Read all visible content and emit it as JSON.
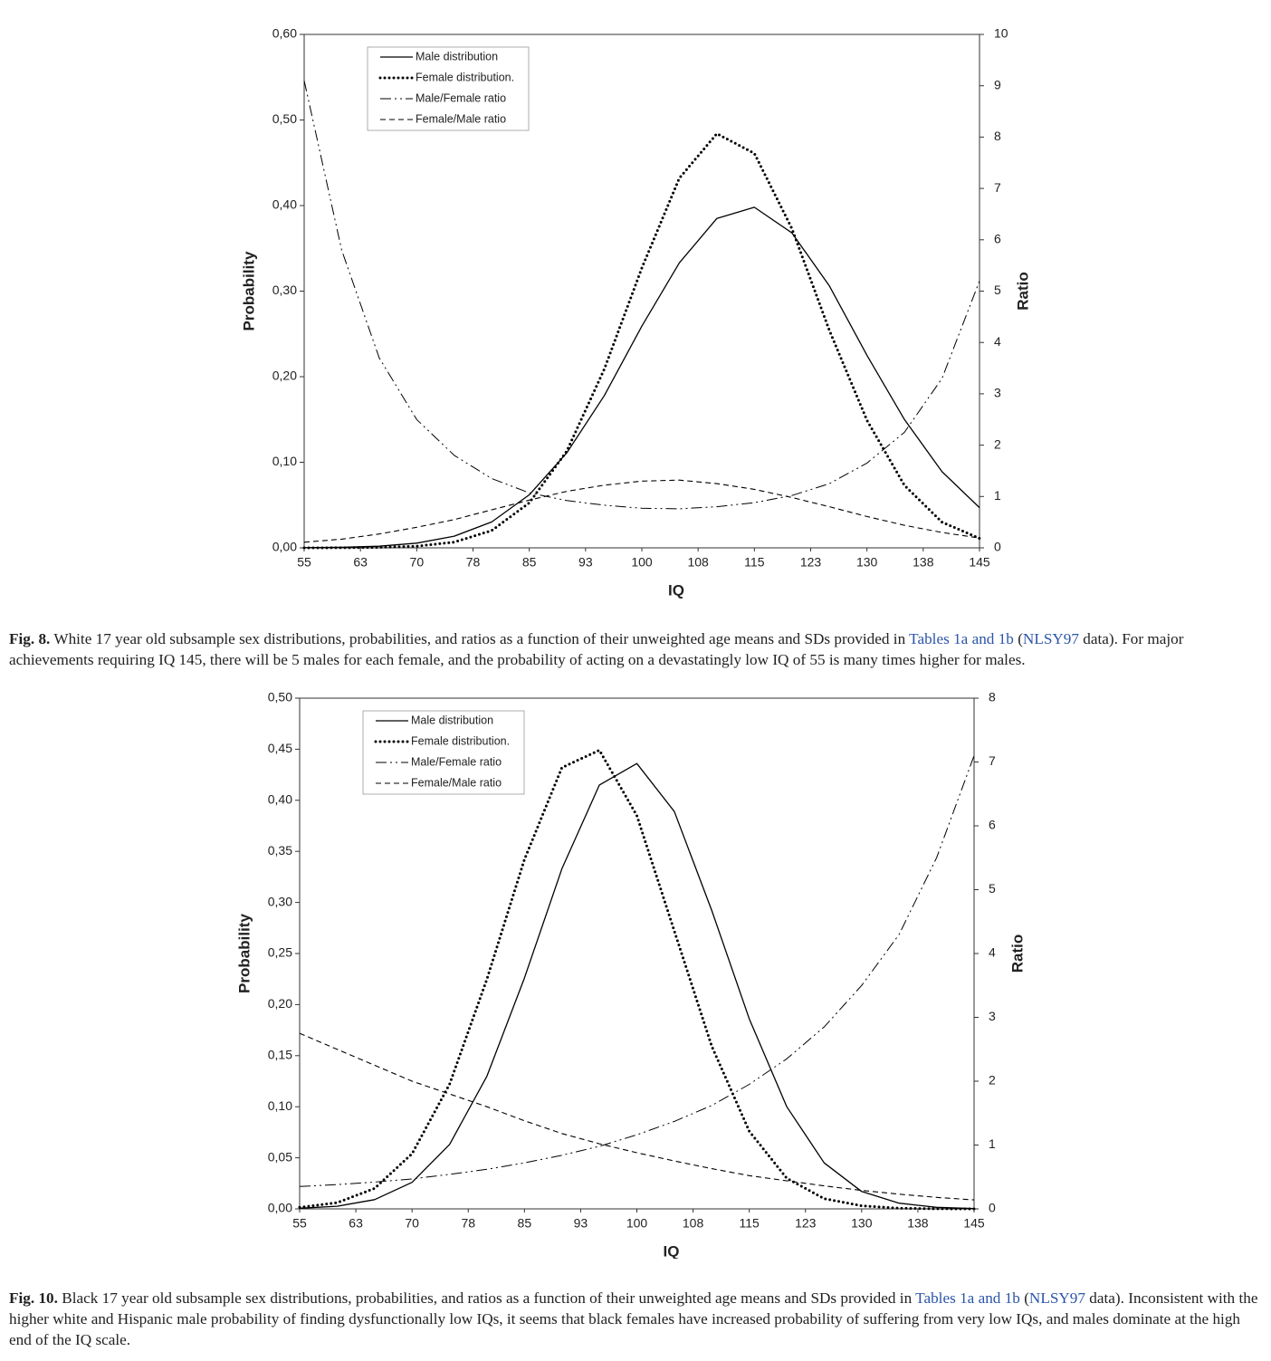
{
  "chart_data": [
    {
      "type": "line",
      "x_label": "IQ",
      "y_label": "Probability",
      "y2_label": "Ratio",
      "x": [
        55,
        60,
        65,
        70,
        75,
        80,
        85,
        90,
        95,
        100,
        105,
        110,
        115,
        120,
        125,
        130,
        135,
        140,
        145
      ],
      "xlim": [
        55,
        145
      ],
      "xticks": [
        55,
        {
          "value": 62.5,
          "label": "63"
        },
        70,
        {
          "value": 77.5,
          "label": "78"
        },
        85,
        {
          "value": 92.5,
          "label": "93"
        },
        100,
        {
          "value": 107.5,
          "label": "108"
        },
        115,
        {
          "value": 122.5,
          "label": "123"
        },
        130,
        {
          "value": 137.5,
          "label": "138"
        },
        145
      ],
      "ylim": [
        0,
        0.6
      ],
      "yticks": [
        {
          "value": 0,
          "label": "0,00"
        },
        {
          "value": 0.1,
          "label": "0,10"
        },
        {
          "value": 0.2,
          "label": "0,20"
        },
        {
          "value": 0.3,
          "label": "0,30"
        },
        {
          "value": 0.4,
          "label": "0,40"
        },
        {
          "value": 0.5,
          "label": "0,50"
        },
        {
          "value": 0.6,
          "label": "0,60"
        }
      ],
      "y2lim": [
        0,
        10
      ],
      "y2ticks": [
        0,
        1,
        2,
        3,
        4,
        5,
        6,
        7,
        8,
        9,
        10
      ],
      "legend": "upper left",
      "series": [
        {
          "name": "Male distribution",
          "color": "#000000",
          "dash": "solid",
          "values": [
            0.0002,
            0.0006,
            0.0019,
            0.0055,
            0.0136,
            0.0303,
            0.062,
            0.111,
            0.178,
            0.259,
            0.333,
            0.385,
            0.398,
            0.368,
            0.306,
            0.225,
            0.15,
            0.089,
            0.047
          ]
        },
        {
          "name": "Female distribution.",
          "color": "#000000",
          "dash": "dotted",
          "values": [
            0.0,
            0.0001,
            0.0005,
            0.0019,
            0.0067,
            0.0202,
            0.0526,
            0.113,
            0.209,
            0.327,
            0.432,
            0.484,
            0.461,
            0.373,
            0.254,
            0.149,
            0.073,
            0.03,
            0.011
          ]
        },
        {
          "name": "Male/Female ratio",
          "color": "#000000",
          "dash": "dashdotdot",
          "axis": "y2",
          "values": [
            9.1,
            5.8,
            3.7,
            2.5,
            1.8,
            1.35,
            1.07,
            0.92,
            0.83,
            0.77,
            0.76,
            0.8,
            0.88,
            1.02,
            1.25,
            1.65,
            2.25,
            3.3,
            5.2
          ]
        },
        {
          "name": "Female/Male ratio",
          "color": "#000000",
          "dash": "dashed",
          "axis": "y2",
          "values": [
            0.11,
            0.17,
            0.27,
            0.4,
            0.55,
            0.74,
            0.93,
            1.1,
            1.22,
            1.3,
            1.32,
            1.25,
            1.14,
            0.98,
            0.8,
            0.61,
            0.44,
            0.3,
            0.19
          ]
        }
      ]
    },
    {
      "type": "line",
      "x_label": "IQ",
      "y_label": "Probability",
      "y2_label": "Ratio",
      "x": [
        55,
        60,
        65,
        70,
        75,
        80,
        85,
        90,
        95,
        100,
        105,
        110,
        115,
        120,
        125,
        130,
        135,
        140,
        145
      ],
      "xlim": [
        55,
        145
      ],
      "xticks": [
        55,
        {
          "value": 62.5,
          "label": "63"
        },
        70,
        {
          "value": 77.5,
          "label": "78"
        },
        85,
        {
          "value": 92.5,
          "label": "93"
        },
        100,
        {
          "value": 107.5,
          "label": "108"
        },
        115,
        {
          "value": 122.5,
          "label": "123"
        },
        130,
        {
          "value": 137.5,
          "label": "138"
        },
        145
      ],
      "ylim": [
        0,
        0.5
      ],
      "yticks": [
        {
          "value": 0,
          "label": "0,00"
        },
        {
          "value": 0.05,
          "label": "0,05"
        },
        {
          "value": 0.1,
          "label": "0,10"
        },
        {
          "value": 0.15,
          "label": "0,15"
        },
        {
          "value": 0.2,
          "label": "0,20"
        },
        {
          "value": 0.25,
          "label": "0,25"
        },
        {
          "value": 0.3,
          "label": "0,30"
        },
        {
          "value": 0.35,
          "label": "0,35"
        },
        {
          "value": 0.4,
          "label": "0,40"
        },
        {
          "value": 0.45,
          "label": "0,45"
        },
        {
          "value": 0.5,
          "label": "0,50"
        }
      ],
      "y2lim": [
        0,
        8
      ],
      "y2ticks": [
        0,
        1,
        2,
        3,
        4,
        5,
        6,
        7,
        8
      ],
      "legend": "upper left",
      "series": [
        {
          "name": "Male distribution",
          "color": "#000000",
          "dash": "solid",
          "values": [
            0.0006,
            0.0026,
            0.009,
            0.026,
            0.063,
            0.13,
            0.226,
            0.333,
            0.415,
            0.436,
            0.389,
            0.292,
            0.186,
            0.1,
            0.045,
            0.017,
            0.0056,
            0.0015,
            0.0003
          ]
        },
        {
          "name": "Female distribution.",
          "color": "#000000",
          "dash": "dotted",
          "values": [
            0.0015,
            0.006,
            0.02,
            0.054,
            0.122,
            0.225,
            0.342,
            0.432,
            0.449,
            0.385,
            0.272,
            0.159,
            0.076,
            0.03,
            0.01,
            0.003,
            0.0006,
            0.0001,
            0.0
          ]
        },
        {
          "name": "Male/Female ratio",
          "color": "#000000",
          "dash": "dashdotdot",
          "axis": "y2",
          "values": [
            0.35,
            0.38,
            0.42,
            0.47,
            0.54,
            0.62,
            0.72,
            0.84,
            0.98,
            1.16,
            1.37,
            1.62,
            1.95,
            2.35,
            2.85,
            3.5,
            4.3,
            5.5,
            7.1
          ]
        },
        {
          "name": "Female/Male ratio",
          "color": "#000000",
          "dash": "dashed",
          "axis": "y2",
          "values": [
            2.75,
            2.5,
            2.25,
            2.0,
            1.8,
            1.6,
            1.38,
            1.18,
            1.02,
            0.88,
            0.75,
            0.63,
            0.52,
            0.44,
            0.36,
            0.29,
            0.23,
            0.18,
            0.14
          ]
        }
      ]
    }
  ],
  "captions": [
    {
      "label": "Fig. 8.",
      "parts": [
        {
          "text": " White 17 year old subsample sex distributions, probabilities, and ratios as a function of their unweighted age means and SDs provided in "
        },
        {
          "text": "Tables 1a and 1b",
          "link": true
        },
        {
          "text": " ("
        },
        {
          "text": "NLSY97",
          "link": true
        },
        {
          "text": " data). For major achievements requiring IQ 145, there will be 5 males for each female, and the probability of acting on a devastatingly low IQ of 55 is many times higher for males."
        }
      ]
    },
    {
      "label": "Fig. 10.",
      "parts": [
        {
          "text": " Black 17 year old subsample sex distributions, probabilities, and ratios as a function of their unweighted age means and SDs provided in "
        },
        {
          "text": "Tables 1a and 1b",
          "link": true
        },
        {
          "text": " ("
        },
        {
          "text": "NLSY97",
          "link": true
        },
        {
          "text": " data). Inconsistent with the higher white and Hispanic male probability of finding dysfunctionally low IQs, it seems that black females have increased probability of suffering from very low IQs, and males dominate at the high end of the IQ scale."
        }
      ]
    }
  ]
}
